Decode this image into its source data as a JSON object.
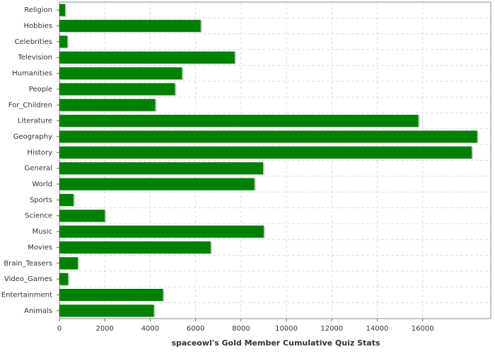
{
  "chart_data": {
    "type": "barh",
    "title": "spaceowl's Gold Member Cumulative Quiz Stats",
    "categories": [
      "Religion",
      "Hobbies",
      "Celebrities",
      "Television",
      "Humanities",
      "People",
      "For_Children",
      "Literature",
      "Geography",
      "History",
      "General",
      "World",
      "Sports",
      "Science",
      "Music",
      "Movies",
      "Brain_Teasers",
      "Video_Games",
      "Entertainment",
      "Animals"
    ],
    "values": [
      250,
      6220,
      350,
      7720,
      5400,
      5090,
      4220,
      15810,
      18400,
      18160,
      8970,
      8590,
      620,
      2000,
      9000,
      6660,
      810,
      380,
      4560,
      4160
    ],
    "color": "#008000",
    "xlim": [
      0,
      19000
    ],
    "xticks": [
      0,
      2000,
      4000,
      6000,
      8000,
      10000,
      12000,
      14000,
      16000
    ],
    "grid": true
  }
}
